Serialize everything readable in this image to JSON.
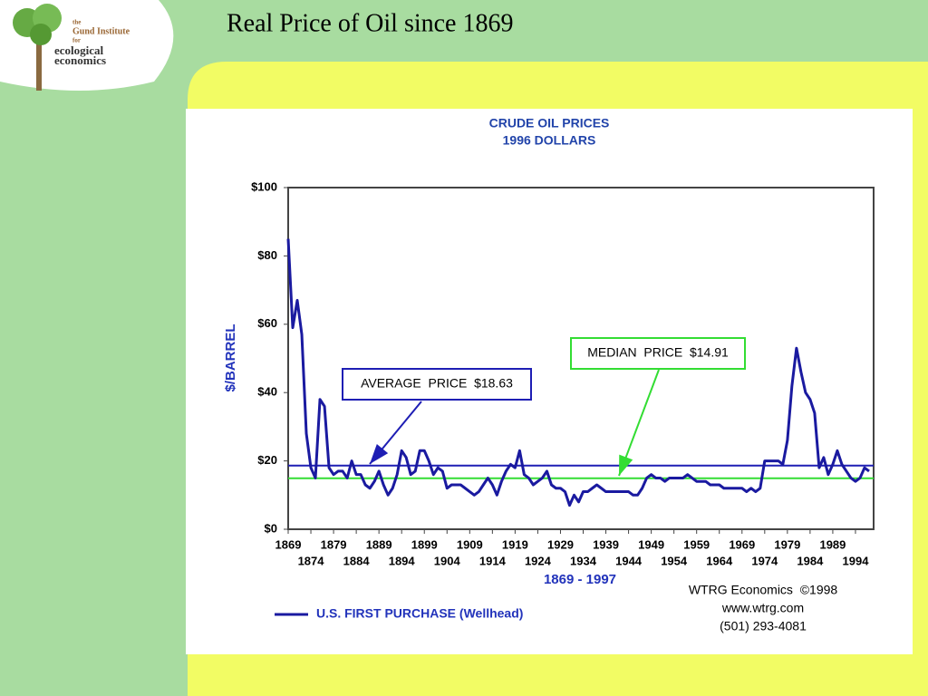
{
  "slide": {
    "title": "Real Price of Oil since 1869",
    "logo": {
      "the": "the",
      "institute": "Gund Institute",
      "for": "for",
      "line1": "ecological",
      "line2": "economics"
    }
  },
  "chart_data": {
    "type": "line",
    "title": "CRUDE OIL PRICES",
    "subtitle": "1996 DOLLARS",
    "ylabel": "$/BARREL",
    "xlabel": "1869 - 1997",
    "x": [
      1869,
      1870,
      1871,
      1872,
      1873,
      1874,
      1875,
      1876,
      1877,
      1878,
      1879,
      1880,
      1881,
      1882,
      1883,
      1884,
      1885,
      1886,
      1887,
      1888,
      1889,
      1890,
      1891,
      1892,
      1893,
      1894,
      1895,
      1896,
      1897,
      1898,
      1899,
      1900,
      1901,
      1902,
      1903,
      1904,
      1905,
      1906,
      1907,
      1908,
      1909,
      1910,
      1911,
      1912,
      1913,
      1914,
      1915,
      1916,
      1917,
      1918,
      1919,
      1920,
      1921,
      1922,
      1923,
      1924,
      1925,
      1926,
      1927,
      1928,
      1929,
      1930,
      1931,
      1932,
      1933,
      1934,
      1935,
      1936,
      1937,
      1938,
      1939,
      1940,
      1941,
      1942,
      1943,
      1944,
      1945,
      1946,
      1947,
      1948,
      1949,
      1950,
      1951,
      1952,
      1953,
      1954,
      1955,
      1956,
      1957,
      1958,
      1959,
      1960,
      1961,
      1962,
      1963,
      1964,
      1965,
      1966,
      1967,
      1968,
      1969,
      1970,
      1971,
      1972,
      1973,
      1974,
      1975,
      1976,
      1977,
      1978,
      1979,
      1980,
      1981,
      1982,
      1983,
      1984,
      1985,
      1986,
      1987,
      1988,
      1989,
      1990,
      1991,
      1992,
      1993,
      1994,
      1995,
      1996,
      1997
    ],
    "series": [
      {
        "name": "U.S. FIRST PURCHASE (Wellhead)",
        "color": "#1a1aa0",
        "values": [
          85,
          59,
          67,
          57,
          28,
          18,
          15,
          38,
          36,
          18,
          16,
          17,
          17,
          15,
          20,
          16,
          16,
          13,
          12,
          14,
          17,
          13,
          10,
          12,
          16,
          23,
          21,
          16,
          17,
          23,
          23,
          20,
          16,
          18,
          17,
          12,
          13,
          13,
          13,
          12,
          11,
          10,
          11,
          13,
          15,
          13,
          10,
          14,
          17,
          19,
          18,
          23,
          16,
          15,
          13,
          14,
          15,
          17,
          13,
          12,
          12,
          11,
          7,
          10,
          8,
          11,
          11,
          12,
          13,
          12,
          11,
          11,
          11,
          11,
          11,
          11,
          10,
          10,
          12,
          15,
          16,
          15,
          15,
          14,
          15,
          15,
          15,
          15,
          16,
          15,
          14,
          14,
          14,
          13,
          13,
          13,
          12,
          12,
          12,
          12,
          12,
          11,
          12,
          11,
          12,
          20,
          20,
          20,
          20,
          19,
          26,
          42,
          53,
          46,
          40,
          38,
          34,
          18,
          21,
          16,
          19,
          23,
          19,
          17,
          15,
          14,
          15,
          18,
          17
        ]
      }
    ],
    "reference_lines": [
      {
        "label": "AVERAGE  PRICE  $18.63",
        "value": 18.63,
        "color": "#1e1eb4"
      },
      {
        "label": "MEDIAN  PRICE  $14.91",
        "value": 14.91,
        "color": "#33dd33"
      }
    ],
    "xlim": [
      1869,
      1998
    ],
    "xticks": [
      1869,
      1874,
      1879,
      1884,
      1889,
      1894,
      1899,
      1904,
      1909,
      1914,
      1919,
      1924,
      1929,
      1934,
      1939,
      1944,
      1949,
      1954,
      1959,
      1964,
      1969,
      1974,
      1979,
      1984,
      1989,
      1994
    ],
    "ylim": [
      0,
      100
    ],
    "yticks": [
      {
        "value": 0,
        "label": "$0"
      },
      {
        "value": 20,
        "label": "$20"
      },
      {
        "value": 40,
        "label": "$40"
      },
      {
        "value": 60,
        "label": "$60"
      },
      {
        "value": 80,
        "label": "$80"
      },
      {
        "value": 100,
        "label": "$100"
      }
    ],
    "credits": [
      "WTRG Economics  ©1998",
      "www.wtrg.com",
      "(501) 293-4081"
    ]
  }
}
